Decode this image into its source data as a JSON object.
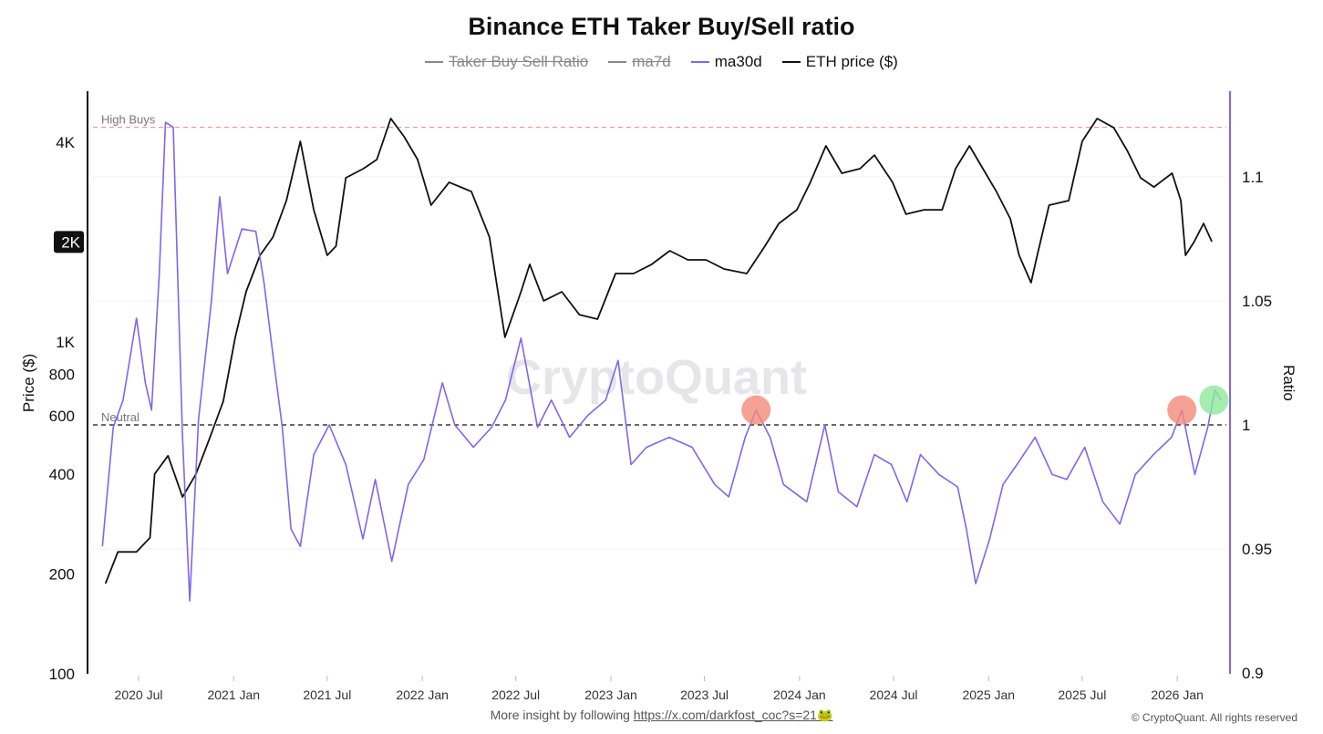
{
  "chart_data": {
    "type": "line",
    "title": "Binance ETH Taker Buy/Sell ratio",
    "legend": [
      {
        "name": "Taker Buy Sell Ratio",
        "color": "#888888",
        "visible": false
      },
      {
        "name": "ma7d",
        "color": "#888888",
        "visible": false
      },
      {
        "name": "ma30d",
        "color": "#7b68ee",
        "visible": true
      },
      {
        "name": "ETH price ($)",
        "color": "#111111",
        "visible": true
      }
    ],
    "legend_placement": "top-center",
    "x_ticks": [
      "2020 Jul",
      "2021 Jan",
      "2021 Jul",
      "2022 Jan",
      "2022 Jul",
      "2023 Jan",
      "2023 Jul",
      "2024 Jan",
      "2024 Jul",
      "2025 Jan",
      "2025 Jul",
      "2026 Jan"
    ],
    "y_left": {
      "label": "Price ($)",
      "scale": "log",
      "range": [
        100,
        5200
      ],
      "ticks": [
        "100",
        "200",
        "400",
        "600",
        "800",
        "1K",
        "2K",
        "4K"
      ],
      "tick_values": [
        100,
        200,
        400,
        600,
        800,
        1000,
        2000,
        4000
      ],
      "highlighted_tick": "2K"
    },
    "y_right": {
      "label": "Ratio",
      "scale": "linear",
      "range": [
        0.9,
        1.135
      ],
      "ticks": [
        "0.9",
        "0.95",
        "1",
        "1.05",
        "1.1"
      ],
      "tick_values": [
        0.9,
        0.95,
        1,
        1.05,
        1.1
      ]
    },
    "grid": true,
    "reference_lines": [
      {
        "label": "High Buys",
        "value": 1.12,
        "color": "#e8a090",
        "style": "dashed"
      },
      {
        "label": "Neutral",
        "value": 1.0,
        "color": "#111111",
        "style": "dashed"
      }
    ],
    "markers": [
      {
        "date": "2023-10-09",
        "value": 1.006,
        "color": "#f28b7a"
      },
      {
        "date": "2026-01-10",
        "value": 1.006,
        "color": "#f28b7a"
      },
      {
        "date": "2026-03-13",
        "value": 1.01,
        "color": "#8ee89a"
      }
    ],
    "series": [
      {
        "name": "ETH price ($)",
        "axis": "left",
        "color": "#111111",
        "points": [
          [
            "2020-04-28",
            187
          ],
          [
            "2020-05-22",
            233
          ],
          [
            "2020-06-27",
            233
          ],
          [
            "2020-07-23",
            257
          ],
          [
            "2020-08-01",
            400
          ],
          [
            "2020-08-27",
            454
          ],
          [
            "2020-09-24",
            341
          ],
          [
            "2020-10-20",
            400
          ],
          [
            "2020-11-16",
            515
          ],
          [
            "2020-12-12",
            663
          ],
          [
            "2021-01-04",
            1033
          ],
          [
            "2021-01-25",
            1416
          ],
          [
            "2021-02-21",
            1824
          ],
          [
            "2021-03-18",
            2070
          ],
          [
            "2021-04-13",
            2666
          ],
          [
            "2021-05-10",
            4022
          ],
          [
            "2021-06-05",
            2500
          ],
          [
            "2021-07-01",
            1824
          ],
          [
            "2021-07-18",
            1943
          ],
          [
            "2021-08-06",
            3123
          ],
          [
            "2021-09-09",
            3327
          ],
          [
            "2021-10-05",
            3544
          ],
          [
            "2021-11-01",
            4710
          ],
          [
            "2021-11-27",
            4150
          ],
          [
            "2021-12-23",
            3544
          ],
          [
            "2022-01-18",
            2582
          ],
          [
            "2022-02-22",
            3027
          ],
          [
            "2022-04-06",
            2838
          ],
          [
            "2022-05-11",
            2070
          ],
          [
            "2022-06-10",
            1033
          ],
          [
            "2022-07-11",
            1416
          ],
          [
            "2022-07-28",
            1713
          ],
          [
            "2022-08-24",
            1330
          ],
          [
            "2022-09-28",
            1416
          ],
          [
            "2022-11-01",
            1208
          ],
          [
            "2022-12-06",
            1171
          ],
          [
            "2023-01-10",
            1607
          ],
          [
            "2023-02-14",
            1607
          ],
          [
            "2023-03-21",
            1713
          ],
          [
            "2023-04-25",
            1883
          ],
          [
            "2023-05-30",
            1767
          ],
          [
            "2023-07-04",
            1767
          ],
          [
            "2023-08-08",
            1659
          ],
          [
            "2023-09-21",
            1607
          ],
          [
            "2023-10-26",
            1943
          ],
          [
            "2023-11-22",
            2275
          ],
          [
            "2023-12-27",
            2500
          ],
          [
            "2024-01-22",
            3027
          ],
          [
            "2024-02-21",
            3897
          ],
          [
            "2024-03-23",
            3223
          ],
          [
            "2024-04-27",
            3327
          ],
          [
            "2024-05-25",
            3655
          ],
          [
            "2024-06-29",
            3027
          ],
          [
            "2024-07-25",
            2426
          ],
          [
            "2024-08-29",
            2500
          ],
          [
            "2024-10-03",
            2500
          ],
          [
            "2024-10-29",
            3327
          ],
          [
            "2024-11-25",
            3897
          ],
          [
            "2024-12-21",
            3327
          ],
          [
            "2025-01-16",
            2838
          ],
          [
            "2025-02-12",
            2349
          ],
          [
            "2025-03-01",
            1824
          ],
          [
            "2025-03-24",
            1509
          ],
          [
            "2025-04-05",
            1824
          ],
          [
            "2025-04-28",
            2582
          ],
          [
            "2025-06-05",
            2666
          ],
          [
            "2025-07-01",
            4022
          ],
          [
            "2025-07-30",
            4710
          ],
          [
            "2025-08-31",
            4424
          ],
          [
            "2025-09-26",
            3775
          ],
          [
            "2025-10-22",
            3123
          ],
          [
            "2025-11-17",
            2930
          ],
          [
            "2025-12-22",
            3223
          ],
          [
            "2026-01-08",
            2666
          ],
          [
            "2026-01-17",
            1824
          ],
          [
            "2026-02-03",
            2005
          ],
          [
            "2026-02-21",
            2275
          ],
          [
            "2026-03-09",
            2005
          ]
        ]
      },
      {
        "name": "ma30d",
        "axis": "right",
        "color": "#7b68ee",
        "points": [
          [
            "2020-04-22",
            0.951
          ],
          [
            "2020-05-13",
            0.999
          ],
          [
            "2020-06-01",
            1.01
          ],
          [
            "2020-06-27",
            1.043
          ],
          [
            "2020-07-14",
            1.017
          ],
          [
            "2020-07-26",
            1.006
          ],
          [
            "2020-08-10",
            1.061
          ],
          [
            "2020-08-22",
            1.122
          ],
          [
            "2020-09-06",
            1.12
          ],
          [
            "2020-09-24",
            0.995
          ],
          [
            "2020-10-08",
            0.929
          ],
          [
            "2020-10-25",
            1.002
          ],
          [
            "2020-11-19",
            1.05
          ],
          [
            "2020-12-05",
            1.092
          ],
          [
            "2020-12-20",
            1.061
          ],
          [
            "2021-01-17",
            1.079
          ],
          [
            "2021-02-13",
            1.078
          ],
          [
            "2021-03-01",
            1.057
          ],
          [
            "2021-03-18",
            1.028
          ],
          [
            "2021-04-05",
            0.999
          ],
          [
            "2021-04-22",
            0.958
          ],
          [
            "2021-05-10",
            0.951
          ],
          [
            "2021-06-05",
            0.988
          ],
          [
            "2021-07-05",
            1.0
          ],
          [
            "2021-08-06",
            0.984
          ],
          [
            "2021-09-08",
            0.954
          ],
          [
            "2021-10-02",
            0.978
          ],
          [
            "2021-11-03",
            0.945
          ],
          [
            "2021-12-05",
            0.976
          ],
          [
            "2022-01-04",
            0.986
          ],
          [
            "2022-02-09",
            1.017
          ],
          [
            "2022-03-05",
            1.0
          ],
          [
            "2022-04-10",
            0.991
          ],
          [
            "2022-05-15",
            0.999
          ],
          [
            "2022-06-11",
            1.01
          ],
          [
            "2022-07-11",
            1.035
          ],
          [
            "2022-08-12",
            0.999
          ],
          [
            "2022-09-08",
            1.01
          ],
          [
            "2022-10-13",
            0.995
          ],
          [
            "2022-11-18",
            1.004
          ],
          [
            "2022-12-22",
            1.01
          ],
          [
            "2023-01-15",
            1.026
          ],
          [
            "2023-02-09",
            0.984
          ],
          [
            "2023-03-11",
            0.991
          ],
          [
            "2023-04-24",
            0.995
          ],
          [
            "2023-06-07",
            0.991
          ],
          [
            "2023-07-21",
            0.976
          ],
          [
            "2023-08-17",
            0.971
          ],
          [
            "2023-09-18",
            0.995
          ],
          [
            "2023-10-09",
            1.006
          ],
          [
            "2023-11-05",
            0.995
          ],
          [
            "2023-12-01",
            0.976
          ],
          [
            "2024-01-15",
            0.969
          ],
          [
            "2024-02-19",
            1.0
          ],
          [
            "2024-03-16",
            0.973
          ],
          [
            "2024-04-21",
            0.967
          ],
          [
            "2024-05-25",
            0.988
          ],
          [
            "2024-06-27",
            0.984
          ],
          [
            "2024-07-27",
            0.969
          ],
          [
            "2024-08-22",
            0.988
          ],
          [
            "2024-09-27",
            0.98
          ],
          [
            "2024-11-02",
            0.975
          ],
          [
            "2024-11-19",
            0.958
          ],
          [
            "2024-12-07",
            0.936
          ],
          [
            "2025-01-03",
            0.954
          ],
          [
            "2025-01-29",
            0.976
          ],
          [
            "2025-02-25",
            0.984
          ],
          [
            "2025-04-01",
            0.995
          ],
          [
            "2025-05-04",
            0.98
          ],
          [
            "2025-06-01",
            0.978
          ],
          [
            "2025-07-06",
            0.991
          ],
          [
            "2025-08-10",
            0.969
          ],
          [
            "2025-09-12",
            0.96
          ],
          [
            "2025-10-12",
            0.98
          ],
          [
            "2025-11-16",
            0.988
          ],
          [
            "2025-12-21",
            0.995
          ],
          [
            "2026-01-10",
            1.006
          ],
          [
            "2026-02-04",
            0.98
          ],
          [
            "2026-03-01",
            0.999
          ],
          [
            "2026-03-15",
            1.014
          ],
          [
            "2026-03-27",
            1.01
          ]
        ]
      }
    ]
  },
  "watermark": "CryptoQuant",
  "footer": {
    "text": "More insight by following ",
    "link": "https://x.com/darkfost_coc?s=21",
    "emoji": "🐸",
    "copyright": "© CryptoQuant. All rights reserved"
  }
}
